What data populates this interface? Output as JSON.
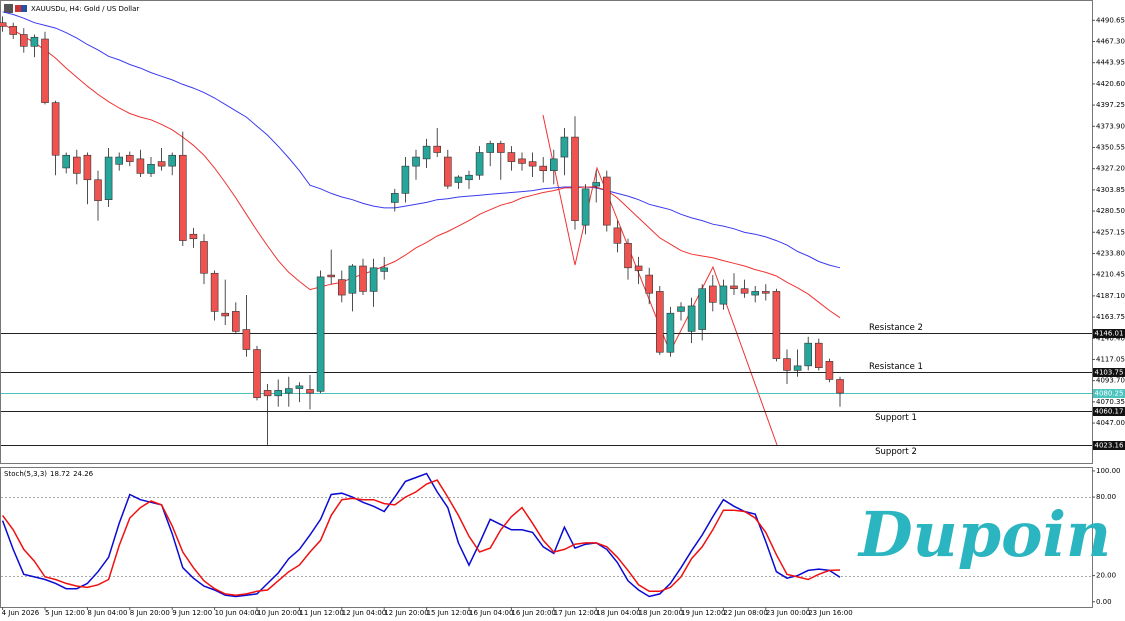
{
  "chart_data": [
    {
      "type": "candlestick",
      "title": "XAUUSDu, H4: Gold / US Dollar",
      "categories": [
        "4 Jun 2026",
        null,
        null,
        null,
        "5 Jun 12:00",
        null,
        null,
        null,
        "8 Jun 04:00",
        null,
        null,
        null,
        "8 Jun 20:00",
        null,
        null,
        null,
        "9 Jun 12:00",
        null,
        null,
        null,
        "10 Jun 04:00",
        null,
        null,
        null,
        "10 Jun 20:00",
        null,
        null,
        null,
        "11 Jun 12:00",
        null,
        null,
        null,
        "12 Jun 04:00",
        null,
        null,
        null,
        "12 Jun 20:00",
        null,
        null,
        null,
        "15 Jun 12:00",
        null,
        null,
        null,
        "16 Jun 04:00",
        null,
        null,
        null,
        "16 Jun 20:00",
        null,
        null,
        null,
        "17 Jun 12:00",
        null,
        null,
        null,
        "18 Jun 04:00",
        null,
        null,
        null,
        "18 Jun 20:00",
        null,
        null,
        null,
        "19 Jun 12:00",
        null,
        null,
        null,
        "22 Jun 08:00",
        null,
        null,
        null,
        "23 Jun 00:00",
        null,
        null,
        null,
        "23 Jun 16:00",
        null,
        null,
        null
      ],
      "open": [
        4488,
        4484,
        4475,
        4462,
        4470,
        4400,
        4328,
        4340,
        4342,
        4315,
        4293,
        4332,
        4342,
        4338,
        4322,
        4335,
        4330,
        4342,
        4255,
        4247,
        4212,
        4168,
        4170,
        4150,
        4128,
        4083,
        4077,
        4080,
        4085,
        4084,
        4082,
        4210,
        4205,
        4190,
        4220,
        4192,
        4214,
        4290,
        4300,
        4330,
        4338,
        4352,
        4340,
        4312,
        4315,
        4320,
        4345,
        4355,
        4345,
        4338,
        4335,
        4330,
        4325,
        4340,
        4362,
        4265,
        4308,
        4318,
        4262,
        4245,
        4220,
        4210,
        4192,
        4125,
        4170,
        4148,
        4150,
        4198,
        4178,
        4198,
        4195,
        4188,
        4192,
        4192,
        4118,
        4105,
        4110,
        4135,
        4115,
        4095
      ],
      "high": [
        4495,
        4488,
        4482,
        4475,
        4478,
        4402,
        4345,
        4348,
        4345,
        4325,
        4350,
        4345,
        4346,
        4348,
        4340,
        4350,
        4345,
        4368,
        4262,
        4255,
        4215,
        4205,
        4180,
        4188,
        4132,
        4090,
        4095,
        4098,
        4092,
        4100,
        4215,
        4238,
        4215,
        4222,
        4228,
        4228,
        4230,
        4305,
        4340,
        4348,
        4360,
        4372,
        4348,
        4320,
        4325,
        4352,
        4358,
        4358,
        4352,
        4345,
        4345,
        4340,
        4348,
        4372,
        4385,
        4310,
        4325,
        4325,
        4270,
        4250,
        4230,
        4218,
        4198,
        4175,
        4180,
        4185,
        4200,
        4210,
        4205,
        4212,
        4205,
        4198,
        4200,
        4195,
        4128,
        4128,
        4142,
        4140,
        4118,
        4098
      ],
      "low": [
        4478,
        4470,
        4455,
        4450,
        4398,
        4320,
        4322,
        4310,
        4288,
        4270,
        4285,
        4325,
        4330,
        4318,
        4318,
        4325,
        4320,
        4242,
        4240,
        4200,
        4160,
        4155,
        4145,
        4120,
        4072,
        4023,
        4065,
        4065,
        4070,
        4062,
        4080,
        4200,
        4180,
        4170,
        4188,
        4175,
        4205,
        4280,
        4290,
        4315,
        4328,
        4340,
        4305,
        4305,
        4305,
        4315,
        4330,
        4315,
        4325,
        4325,
        4318,
        4312,
        4310,
        4320,
        4260,
        4255,
        4290,
        4258,
        4235,
        4205,
        4200,
        4178,
        4122,
        4120,
        4160,
        4135,
        4138,
        4170,
        4172,
        4188,
        4185,
        4180,
        4182,
        4115,
        4090,
        4098,
        4105,
        4105,
        4092,
        4065
      ],
      "close": [
        4484,
        4475,
        4462,
        4472,
        4400,
        4342,
        4342,
        4322,
        4315,
        4292,
        4340,
        4340,
        4335,
        4322,
        4332,
        4330,
        4342,
        4248,
        4250,
        4212,
        4170,
        4165,
        4148,
        4128,
        4075,
        4077,
        4083,
        4085,
        4088,
        4080,
        4208,
        4208,
        4188,
        4220,
        4192,
        4218,
        4218,
        4300,
        4330,
        4340,
        4352,
        4345,
        4308,
        4318,
        4320,
        4345,
        4355,
        4345,
        4335,
        4333,
        4330,
        4325,
        4338,
        4362,
        4270,
        4305,
        4312,
        4265,
        4245,
        4218,
        4215,
        4190,
        4125,
        4168,
        4175,
        4176,
        4195,
        4180,
        4198,
        4195,
        4190,
        4192,
        4190,
        4118,
        4105,
        4110,
        4135,
        4108,
        4095,
        4080
      ],
      "up_color": "#26a69a",
      "down_color": "#ef5350",
      "lines": [
        {
          "color": "#3b3bf0",
          "values": [
            4500,
            4497,
            4493,
            4488,
            4485,
            4482,
            4477,
            4471,
            4464,
            4458,
            4451,
            4447,
            4442,
            4438,
            4433,
            4429,
            4425,
            4420,
            4416,
            4411,
            4405,
            4398,
            4391,
            4384,
            4374,
            4364,
            4352,
            4339,
            4325,
            4309,
            4305,
            4300,
            4296,
            4293,
            4289,
            4286,
            4284,
            4284,
            4286,
            4288,
            4290,
            4293,
            4294,
            4296,
            4297,
            4298,
            4299,
            4300,
            4301,
            4302,
            4303,
            4305,
            4306,
            4307,
            4307,
            4307,
            4306,
            4303,
            4300,
            4297,
            4293,
            4288,
            4285,
            4282,
            4277,
            4273,
            4270,
            4266,
            4264,
            4261,
            4257,
            4255,
            4252,
            4248,
            4243,
            4236,
            4231,
            4225,
            4221,
            4218
          ]
        },
        {
          "color": "#f03232",
          "values": [
            4487,
            4480,
            4473,
            4466,
            4458,
            4449,
            4438,
            4428,
            4418,
            4409,
            4401,
            4394,
            4388,
            4384,
            4381,
            4376,
            4370,
            4362,
            4353,
            4342,
            4328,
            4312,
            4295,
            4277,
            4259,
            4242,
            4226,
            4213,
            4203,
            4194,
            4197,
            4200,
            4202,
            4207,
            4211,
            4215,
            4220,
            4225,
            4232,
            4240,
            4246,
            4253,
            4258,
            4264,
            4270,
            4277,
            4282,
            4287,
            4290,
            4295,
            4298,
            4301,
            4303,
            4306,
            4306,
            4307,
            4307,
            4303,
            4295,
            4284,
            4273,
            4262,
            4251,
            4244,
            4237,
            4233,
            4231,
            4229,
            4226,
            4223,
            4220,
            4216,
            4213,
            4209,
            4202,
            4196,
            4189,
            4180,
            4171,
            4163
          ]
        }
      ],
      "levels": [
        {
          "label": "Resistance 2",
          "value": 4146.01
        },
        {
          "label": "Resistance 1",
          "value": 4103.75
        },
        {
          "label": "Support 1",
          "value": 4060.17
        },
        {
          "label": "Support 2",
          "value": 4023.16
        }
      ],
      "current_price": 4080.25,
      "current_color": "#4cc3bd",
      "ylim": [
        4003,
        4513
      ],
      "yticks": [
        4490.65,
        {
          "value": 4467.3,
          "label": "4467.30"
        },
        4443.95,
        {
          "value": 4420.6,
          "label": "4420.60"
        },
        4397.25,
        {
          "value": 4373.9,
          "label": "4373.90"
        },
        4350.55,
        {
          "value": 4327.2,
          "label": "4327.20"
        },
        4303.85,
        {
          "value": 4280.5,
          "label": "4280.50"
        },
        4257.15,
        {
          "value": 4233.8,
          "label": "4233.80"
        },
        4210.45,
        {
          "value": 4187.1,
          "label": "4187.10"
        },
        4163.75,
        {
          "value": 4140.4,
          "label": "4140.40"
        },
        4117.05,
        {
          "value": 4093.7,
          "label": "4093.70"
        },
        4070.35,
        {
          "value": 4047,
          "label": "4047.00"
        }
      ]
    },
    {
      "type": "line",
      "title": "Stoch(5,3,3)",
      "series": [
        {
          "color": "#0a0ad2",
          "values": [
            62,
            40,
            21,
            19,
            17,
            14,
            10,
            10,
            14,
            23,
            34,
            60,
            82,
            78,
            76,
            74,
            52,
            26,
            18,
            12,
            9,
            5,
            4,
            5,
            6,
            14,
            22,
            33,
            40,
            51,
            63,
            82,
            83,
            80,
            76,
            73,
            69,
            80,
            92,
            95,
            98,
            84,
            72,
            45,
            28,
            45,
            63,
            59,
            55,
            55,
            53,
            42,
            37,
            57,
            41,
            44,
            45,
            40,
            30,
            16,
            9,
            4,
            6,
            14,
            26,
            39,
            51,
            65,
            78,
            73,
            69,
            67,
            46,
            23,
            18,
            20,
            24,
            25,
            24,
            18.72
          ]
        },
        {
          "color": "#ee1111",
          "values": [
            66,
            55,
            40,
            31,
            19,
            17,
            14,
            12,
            11,
            13,
            17,
            43,
            64,
            72,
            77,
            74,
            58,
            38,
            26,
            16,
            10,
            6,
            5,
            6,
            8,
            9,
            16,
            23,
            28,
            38,
            47,
            66,
            78,
            79,
            78,
            78,
            75,
            74,
            80,
            84,
            90,
            93,
            80,
            66,
            50,
            38,
            41,
            55,
            65,
            72,
            60,
            47,
            38,
            40,
            44,
            45,
            45,
            42,
            34,
            24,
            13,
            8,
            8,
            11,
            19,
            33,
            42,
            55,
            70,
            70,
            69,
            64,
            53,
            36,
            21,
            19,
            17,
            21,
            24,
            24.26
          ]
        }
      ],
      "ylim": [
        -4,
        103
      ],
      "yticks": [
        {
          "value": 100,
          "label": "100.00"
        },
        {
          "value": 80,
          "label": "80.00"
        },
        {
          "value": 20,
          "label": "20.00"
        },
        {
          "value": 0,
          "label": "0.00"
        }
      ],
      "levels": [
        80,
        20
      ]
    }
  ],
  "logo": "Dupoin"
}
